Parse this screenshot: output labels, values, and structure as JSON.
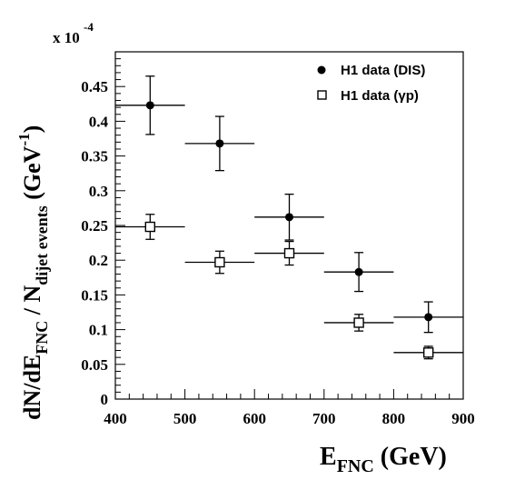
{
  "chart_data": {
    "type": "scatter",
    "xlim": [
      400,
      900
    ],
    "ylim": [
      0,
      0.5
    ],
    "y_multiplier_label": "x 10",
    "y_multiplier_exp": "-4",
    "xticks": [
      "400",
      "500",
      "600",
      "700",
      "800",
      "900"
    ],
    "yticks": [
      "0",
      "0.05",
      "0.1",
      "0.15",
      "0.2",
      "0.25",
      "0.3",
      "0.35",
      "0.4",
      "0.45"
    ],
    "xlabel": {
      "main": "E",
      "sub": "FNC",
      "tail": " (GeV)"
    },
    "ylabel": {
      "p1": "dN/dE",
      "s1": "FNC",
      "p2": " / N",
      "s2": "dijet events",
      "p3": " (GeV",
      "sup": "-1",
      "p4": ")"
    },
    "series": [
      {
        "name": "H1 data (DIS)",
        "marker": "filled-circle",
        "points": [
          {
            "x": 450,
            "y": 0.423,
            "xerr": 50,
            "yerr": 0.042
          },
          {
            "x": 550,
            "y": 0.368,
            "xerr": 50,
            "yerr": 0.039
          },
          {
            "x": 650,
            "y": 0.262,
            "xerr": 50,
            "yerr": 0.033
          },
          {
            "x": 750,
            "y": 0.183,
            "xerr": 50,
            "yerr": 0.028
          },
          {
            "x": 850,
            "y": 0.118,
            "xerr": 50,
            "yerr": 0.022
          }
        ]
      },
      {
        "name": "H1 data (γp)",
        "marker": "open-square",
        "points": [
          {
            "x": 450,
            "y": 0.248,
            "xerr": 50,
            "yerr": 0.018
          },
          {
            "x": 550,
            "y": 0.197,
            "xerr": 50,
            "yerr": 0.016
          },
          {
            "x": 650,
            "y": 0.21,
            "xerr": 50,
            "yerr": 0.017
          },
          {
            "x": 750,
            "y": 0.11,
            "xerr": 50,
            "yerr": 0.012
          },
          {
            "x": 850,
            "y": 0.067,
            "xerr": 50,
            "yerr": 0.009
          }
        ]
      }
    ],
    "legend_position": "top-right",
    "grid": false
  }
}
